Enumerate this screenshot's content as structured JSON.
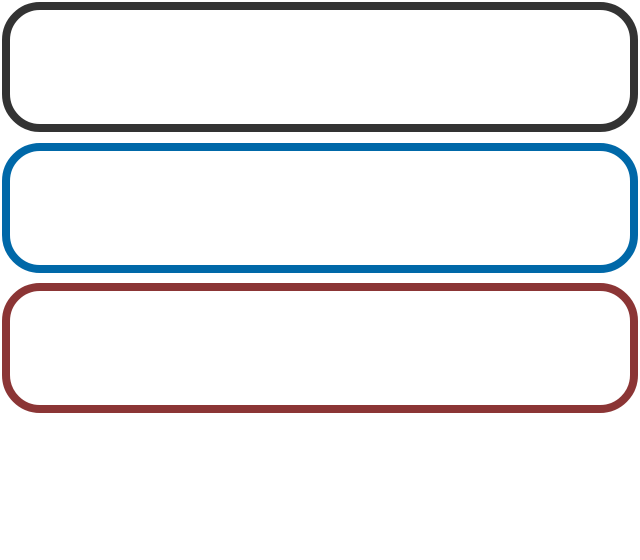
{
  "diagram": {
    "boxes": [
      {
        "color": "#333333"
      },
      {
        "color": "#0068a8"
      },
      {
        "color": "#8b3535"
      }
    ]
  }
}
